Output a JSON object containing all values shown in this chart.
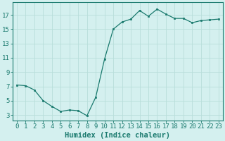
{
  "x": [
    0,
    1,
    2,
    3,
    4,
    5,
    6,
    7,
    8,
    9,
    10,
    11,
    12,
    13,
    14,
    15,
    16,
    17,
    18,
    19,
    20,
    21,
    22,
    23
  ],
  "y": [
    7.2,
    7.1,
    6.5,
    5.0,
    4.2,
    3.5,
    3.7,
    3.6,
    2.9,
    5.5,
    10.8,
    15.0,
    16.0,
    16.4,
    17.6,
    16.8,
    17.8,
    17.1,
    16.5,
    16.5,
    15.9,
    16.2,
    16.3,
    16.4
  ],
  "xlabel": "Humidex (Indice chaleur)",
  "yticks": [
    3,
    5,
    7,
    9,
    11,
    13,
    15,
    17
  ],
  "xticks": [
    0,
    1,
    2,
    3,
    4,
    5,
    6,
    7,
    8,
    9,
    10,
    11,
    12,
    13,
    14,
    15,
    16,
    17,
    18,
    19,
    20,
    21,
    22,
    23
  ],
  "xlim": [
    -0.5,
    23.5
  ],
  "ylim": [
    2.2,
    18.8
  ],
  "line_color": "#1a7a6e",
  "marker_color": "#1a7a6e",
  "bg_color": "#d4f0ef",
  "grid_color": "#b8deda",
  "axis_color": "#1a7a6e",
  "xlabel_fontsize": 7.5,
  "tick_fontsize": 6.5
}
